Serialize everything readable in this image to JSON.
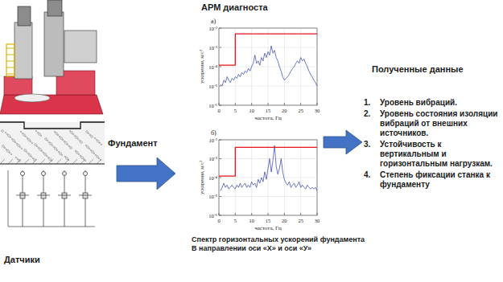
{
  "diagram": {
    "title": "АРМ диагноста",
    "foundation_label": "Фундамент",
    "sensors_label": "Датчики",
    "caption": [
      "Спектр горизонтальных ускорений фундамента",
      "В направлении оси «Х» и оси «У»"
    ],
    "results": {
      "title": "Полученные данные",
      "items": [
        {
          "number": "1.",
          "text": "Уровень вибраций."
        },
        {
          "number": "2.",
          "text": "Уровень состояния изоляции вибраций от внешних источников."
        },
        {
          "number": "3.",
          "text": "Устойчивость к вертикальным и горизонтальным нагрузкам."
        },
        {
          "number": "4.",
          "text": "Степень фиксации станка к фундаменту"
        }
      ]
    }
  },
  "chart_data": [
    {
      "type": "line",
      "label": "а)",
      "x_label": "частота, Гц",
      "y_label": "ускорение, м/с²",
      "log": "y",
      "grid": true,
      "xlim": [
        0,
        30
      ],
      "xticks": [
        0,
        5,
        10,
        15,
        20,
        25,
        30
      ],
      "ylim": [
        1e-06,
        0.01
      ],
      "yticks": [
        {
          "value": 1e-06,
          "label": "10⁻⁶"
        },
        {
          "value": 1e-05,
          "label": "10⁻⁵"
        },
        {
          "value": 0.0001,
          "label": "10⁻⁴"
        },
        {
          "value": 0.001,
          "label": "10⁻³"
        },
        {
          "value": 0.01,
          "label": "10⁻²"
        }
      ],
      "series": [
        {
          "color": "#2b3fa8",
          "x": [
            0.5,
            1,
            1.5,
            2,
            2.5,
            3,
            3.5,
            4,
            4.5,
            5,
            5.5,
            6,
            6.5,
            7,
            7.5,
            8,
            8.5,
            9,
            9.5,
            10,
            10.5,
            11,
            11.5,
            12,
            12.5,
            13,
            13.5,
            14,
            14.5,
            15,
            15.5,
            16,
            16.5,
            17,
            17.5,
            18,
            18.5,
            19,
            19.5,
            20,
            20.5,
            21,
            21.5,
            22,
            22.5,
            23,
            23.5,
            24,
            24.5,
            25,
            25.5,
            26,
            26.5,
            27,
            27.5,
            28,
            28.5,
            29,
            29.5,
            30
          ],
          "values": [
            1.2e-05,
            1e-05,
            2e-05,
            1.5e-05,
            3e-05,
            2e-05,
            1.5e-05,
            2.5e-05,
            2e-05,
            3e-05,
            2.5e-05,
            4e-05,
            3e-05,
            5e-05,
            4e-05,
            6e-05,
            5e-05,
            8e-05,
            6e-05,
            0.0001,
            0.00015,
            0.0004,
            0.00015,
            0.0002,
            0.00012,
            0.0003,
            0.0002,
            0.0005,
            0.0003,
            0.0006,
            0.0004,
            0.0012,
            0.0005,
            0.0007,
            0.0003,
            0.0002,
            0.0001,
            6e-05,
            3e-05,
            2e-05,
            2.5e-05,
            3e-05,
            4e-05,
            6e-05,
            8e-05,
            0.0001,
            0.00015,
            0.0002,
            0.00015,
            0.0003,
            0.0002,
            0.00025,
            0.00015,
            0.0001,
            6e-05,
            4e-05,
            3e-05,
            2e-05,
            1.5e-05,
            1e-05
          ]
        },
        {
          "color": "#e8141c",
          "x": [
            0,
            5,
            5,
            30
          ],
          "values": [
            0.00012,
            0.00012,
            0.005,
            0.005
          ]
        }
      ]
    },
    {
      "type": "line",
      "label": "б)",
      "x_label": "частота, Гц",
      "y_label": "ускорение, м/с²",
      "log": "y",
      "grid": true,
      "xlim": [
        0,
        30
      ],
      "xticks": [
        0,
        5,
        10,
        15,
        20,
        25,
        30
      ],
      "ylim": [
        1e-06,
        0.01
      ],
      "yticks": [
        {
          "value": 1e-06,
          "label": "10⁻⁶"
        },
        {
          "value": 1e-05,
          "label": "10⁻⁵"
        },
        {
          "value": 0.0001,
          "label": "10⁻⁴"
        },
        {
          "value": 0.001,
          "label": "10⁻³"
        },
        {
          "value": 0.01,
          "label": "10⁻²"
        }
      ],
      "series": [
        {
          "color": "#2b3fa8",
          "x": [
            0.5,
            1,
            1.5,
            2,
            2.5,
            3,
            3.5,
            4,
            4.5,
            5,
            5.5,
            6,
            6.5,
            7,
            7.5,
            8,
            8.5,
            9,
            9.5,
            10,
            10.5,
            11,
            11.5,
            12,
            12.5,
            13,
            13.5,
            14,
            14.5,
            15,
            15.5,
            16,
            16.5,
            17,
            17.5,
            18,
            18.5,
            19,
            19.5,
            20,
            20.5,
            21,
            21.5,
            22,
            22.5,
            23,
            23.5,
            24,
            24.5,
            25,
            25.5,
            26,
            26.5,
            27,
            27.5,
            28,
            28.5,
            29,
            29.5,
            30
          ],
          "values": [
            2e-05,
            3e-05,
            5e-05,
            3e-05,
            4e-05,
            2.5e-05,
            3e-05,
            4e-05,
            3e-05,
            2.5e-05,
            4e-05,
            3e-05,
            5e-05,
            3e-05,
            4e-05,
            5e-05,
            3e-05,
            4e-05,
            3e-05,
            6e-05,
            4e-05,
            5e-05,
            3e-05,
            8e-05,
            5e-05,
            0.0001,
            6e-05,
            0.0002,
            8e-05,
            0.0003,
            0.001,
            0.0002,
            0.0008,
            0.005,
            0.0004,
            0.00015,
            0.0003,
            0.001,
            0.0002,
            8e-05,
            5e-05,
            4e-05,
            6e-05,
            3e-05,
            4e-05,
            5e-05,
            3e-05,
            4e-05,
            6e-05,
            3e-05,
            4e-05,
            3e-05,
            2.5e-05,
            4e-05,
            3e-05,
            2.5e-05,
            3e-05,
            2.5e-05,
            3e-05,
            2e-05
          ]
        },
        {
          "color": "#e8141c",
          "x": [
            0,
            5,
            5,
            30
          ],
          "values": [
            0.00012,
            0.00012,
            0.004,
            0.004
          ]
        }
      ]
    }
  ]
}
